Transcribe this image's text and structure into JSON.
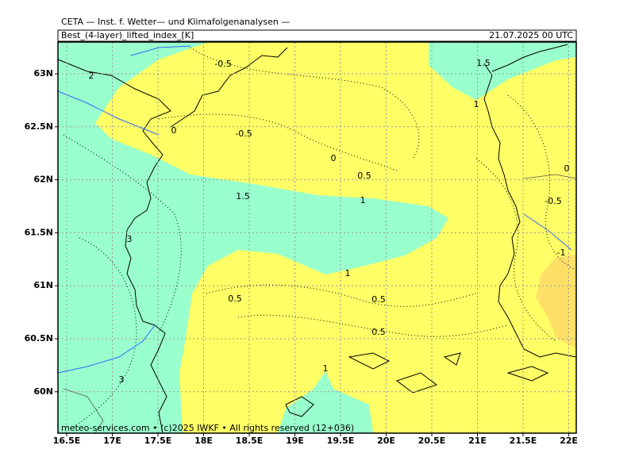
{
  "header": {
    "title": "CETA — Inst. f. Wetter— und Klimafolgenanalysen —",
    "parameter": "Best_(4-layer)_lifted_index_[K]",
    "valid_time": "21.07.2025 00 UTC"
  },
  "map": {
    "x_tick_labels": [
      "16.5E",
      "17E",
      "17.5E",
      "18E",
      "18.5E",
      "19E",
      "19.5E",
      "20E",
      "20.5E",
      "21E",
      "21.5E",
      "22E"
    ],
    "y_tick_labels": [
      "63N",
      "62.5N",
      "62N",
      "61.5N",
      "61N",
      "60.5N",
      "60N"
    ],
    "contour_labels": [
      "-0.5",
      "2",
      "1.5",
      "1",
      "0",
      "-0.5",
      "0",
      "0.5",
      "0",
      "1.5",
      "1",
      "-0.5",
      "3",
      "-1",
      "1",
      "0.5",
      "0.5",
      "0.5",
      "1",
      "3"
    ]
  },
  "footer": "meteo-services.com • (c)2025 IWKF • All rights reserved (12+036)"
}
